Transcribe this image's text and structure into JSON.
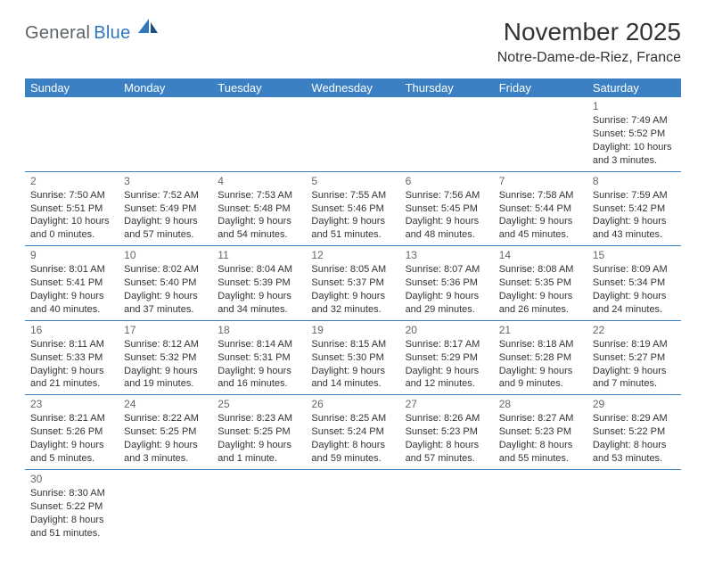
{
  "brand": {
    "name1": "General",
    "name2": "Blue"
  },
  "title": "November 2025",
  "location": "Notre-Dame-de-Riez, France",
  "colors": {
    "header_bg": "#3a80c3",
    "header_fg": "#ffffff",
    "shaded": "#ececec",
    "rule": "#3a80c3",
    "brand_gray": "#5c6366",
    "brand_blue": "#2f78be"
  },
  "daynames": [
    "Sunday",
    "Monday",
    "Tuesday",
    "Wednesday",
    "Thursday",
    "Friday",
    "Saturday"
  ],
  "weeks": [
    [
      null,
      null,
      null,
      null,
      null,
      null,
      {
        "n": "1",
        "sr": "Sunrise: 7:49 AM",
        "ss": "Sunset: 5:52 PM",
        "dl": "Daylight: 10 hours and 3 minutes."
      }
    ],
    [
      {
        "n": "2",
        "sr": "Sunrise: 7:50 AM",
        "ss": "Sunset: 5:51 PM",
        "dl": "Daylight: 10 hours and 0 minutes."
      },
      {
        "n": "3",
        "sr": "Sunrise: 7:52 AM",
        "ss": "Sunset: 5:49 PM",
        "dl": "Daylight: 9 hours and 57 minutes."
      },
      {
        "n": "4",
        "sr": "Sunrise: 7:53 AM",
        "ss": "Sunset: 5:48 PM",
        "dl": "Daylight: 9 hours and 54 minutes."
      },
      {
        "n": "5",
        "sr": "Sunrise: 7:55 AM",
        "ss": "Sunset: 5:46 PM",
        "dl": "Daylight: 9 hours and 51 minutes."
      },
      {
        "n": "6",
        "sr": "Sunrise: 7:56 AM",
        "ss": "Sunset: 5:45 PM",
        "dl": "Daylight: 9 hours and 48 minutes."
      },
      {
        "n": "7",
        "sr": "Sunrise: 7:58 AM",
        "ss": "Sunset: 5:44 PM",
        "dl": "Daylight: 9 hours and 45 minutes."
      },
      {
        "n": "8",
        "sr": "Sunrise: 7:59 AM",
        "ss": "Sunset: 5:42 PM",
        "dl": "Daylight: 9 hours and 43 minutes."
      }
    ],
    [
      {
        "n": "9",
        "sr": "Sunrise: 8:01 AM",
        "ss": "Sunset: 5:41 PM",
        "dl": "Daylight: 9 hours and 40 minutes."
      },
      {
        "n": "10",
        "sr": "Sunrise: 8:02 AM",
        "ss": "Sunset: 5:40 PM",
        "dl": "Daylight: 9 hours and 37 minutes."
      },
      {
        "n": "11",
        "sr": "Sunrise: 8:04 AM",
        "ss": "Sunset: 5:39 PM",
        "dl": "Daylight: 9 hours and 34 minutes."
      },
      {
        "n": "12",
        "sr": "Sunrise: 8:05 AM",
        "ss": "Sunset: 5:37 PM",
        "dl": "Daylight: 9 hours and 32 minutes."
      },
      {
        "n": "13",
        "sr": "Sunrise: 8:07 AM",
        "ss": "Sunset: 5:36 PM",
        "dl": "Daylight: 9 hours and 29 minutes."
      },
      {
        "n": "14",
        "sr": "Sunrise: 8:08 AM",
        "ss": "Sunset: 5:35 PM",
        "dl": "Daylight: 9 hours and 26 minutes."
      },
      {
        "n": "15",
        "sr": "Sunrise: 8:09 AM",
        "ss": "Sunset: 5:34 PM",
        "dl": "Daylight: 9 hours and 24 minutes."
      }
    ],
    [
      {
        "n": "16",
        "sr": "Sunrise: 8:11 AM",
        "ss": "Sunset: 5:33 PM",
        "dl": "Daylight: 9 hours and 21 minutes."
      },
      {
        "n": "17",
        "sr": "Sunrise: 8:12 AM",
        "ss": "Sunset: 5:32 PM",
        "dl": "Daylight: 9 hours and 19 minutes."
      },
      {
        "n": "18",
        "sr": "Sunrise: 8:14 AM",
        "ss": "Sunset: 5:31 PM",
        "dl": "Daylight: 9 hours and 16 minutes."
      },
      {
        "n": "19",
        "sr": "Sunrise: 8:15 AM",
        "ss": "Sunset: 5:30 PM",
        "dl": "Daylight: 9 hours and 14 minutes."
      },
      {
        "n": "20",
        "sr": "Sunrise: 8:17 AM",
        "ss": "Sunset: 5:29 PM",
        "dl": "Daylight: 9 hours and 12 minutes."
      },
      {
        "n": "21",
        "sr": "Sunrise: 8:18 AM",
        "ss": "Sunset: 5:28 PM",
        "dl": "Daylight: 9 hours and 9 minutes."
      },
      {
        "n": "22",
        "sr": "Sunrise: 8:19 AM",
        "ss": "Sunset: 5:27 PM",
        "dl": "Daylight: 9 hours and 7 minutes."
      }
    ],
    [
      {
        "n": "23",
        "sr": "Sunrise: 8:21 AM",
        "ss": "Sunset: 5:26 PM",
        "dl": "Daylight: 9 hours and 5 minutes."
      },
      {
        "n": "24",
        "sr": "Sunrise: 8:22 AM",
        "ss": "Sunset: 5:25 PM",
        "dl": "Daylight: 9 hours and 3 minutes."
      },
      {
        "n": "25",
        "sr": "Sunrise: 8:23 AM",
        "ss": "Sunset: 5:25 PM",
        "dl": "Daylight: 9 hours and 1 minute."
      },
      {
        "n": "26",
        "sr": "Sunrise: 8:25 AM",
        "ss": "Sunset: 5:24 PM",
        "dl": "Daylight: 8 hours and 59 minutes."
      },
      {
        "n": "27",
        "sr": "Sunrise: 8:26 AM",
        "ss": "Sunset: 5:23 PM",
        "dl": "Daylight: 8 hours and 57 minutes."
      },
      {
        "n": "28",
        "sr": "Sunrise: 8:27 AM",
        "ss": "Sunset: 5:23 PM",
        "dl": "Daylight: 8 hours and 55 minutes."
      },
      {
        "n": "29",
        "sr": "Sunrise: 8:29 AM",
        "ss": "Sunset: 5:22 PM",
        "dl": "Daylight: 8 hours and 53 minutes."
      }
    ],
    [
      {
        "n": "30",
        "sr": "Sunrise: 8:30 AM",
        "ss": "Sunset: 5:22 PM",
        "dl": "Daylight: 8 hours and 51 minutes."
      },
      null,
      null,
      null,
      null,
      null,
      null
    ]
  ]
}
